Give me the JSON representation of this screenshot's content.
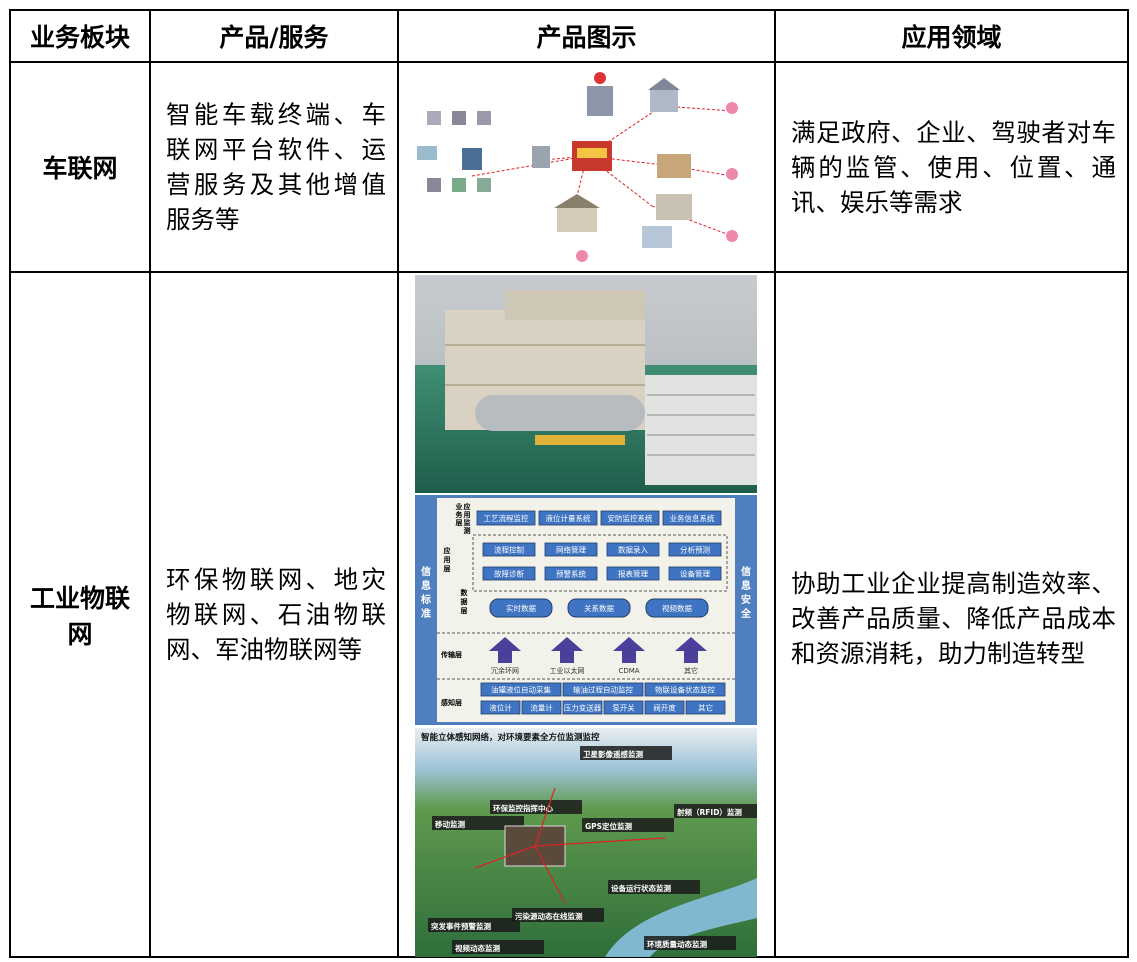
{
  "table": {
    "header": [
      "业务板块",
      "产品/服务",
      "产品图示",
      "应用领域"
    ],
    "rows": [
      {
        "segment": "车联网",
        "products": "智能车载终端、车联网平台软件、运营服务及其他增值服务等",
        "application": "满足政府、企业、驾驶者对车辆的监管、使用、位置、通讯、娱乐等需求"
      },
      {
        "segment": "工业物联网",
        "products": "环保物联网、地灾物联网、石油物联网、军油物联网等",
        "application": "协助工业企业提高制造效率、改善产品质量、降低产品成本和资源消耗，助力制造转型"
      }
    ]
  },
  "diagram": {
    "left": "信息标准",
    "right": "信息安全",
    "monitor": "应用监测",
    "layers": [
      {
        "label": "业务层",
        "items": [
          "工艺流程监控",
          "液位计量系统",
          "安防监控系统",
          "业务信息系统"
        ]
      },
      {
        "label": "应用层",
        "items": [
          "流程控制",
          "网络管理",
          "数据录入",
          "分析预测",
          "故障诊断",
          "预警系统",
          "报表管理",
          "设备管理"
        ]
      },
      {
        "label": "数据层",
        "items": [
          "实时数据",
          "关系数据",
          "视频数据"
        ]
      },
      {
        "label": "传输层",
        "items": [
          "冗余环网",
          "工业以太网",
          "CDMA",
          "其它"
        ]
      },
      {
        "label": "感知层",
        "items": [
          "油罐液位自动采集",
          "输油过程自动监控",
          "物联设备状态监控",
          "液位计",
          "流量计",
          "压力变送器",
          "泵开关",
          "阀开度",
          "其它"
        ]
      }
    ]
  },
  "map": {
    "caption": "智能立体感知网络，对环境要素全方位监测监控",
    "labels": [
      "卫星影像遥感监测",
      "移动监测",
      "环保监控指挥中心",
      "GPS定位监测",
      "射频（RFID）监测",
      "突发事件预警监测",
      "设备运行状态监测",
      "污染源动态在线监测",
      "视频动态监测",
      "环境质量动态监测"
    ]
  }
}
